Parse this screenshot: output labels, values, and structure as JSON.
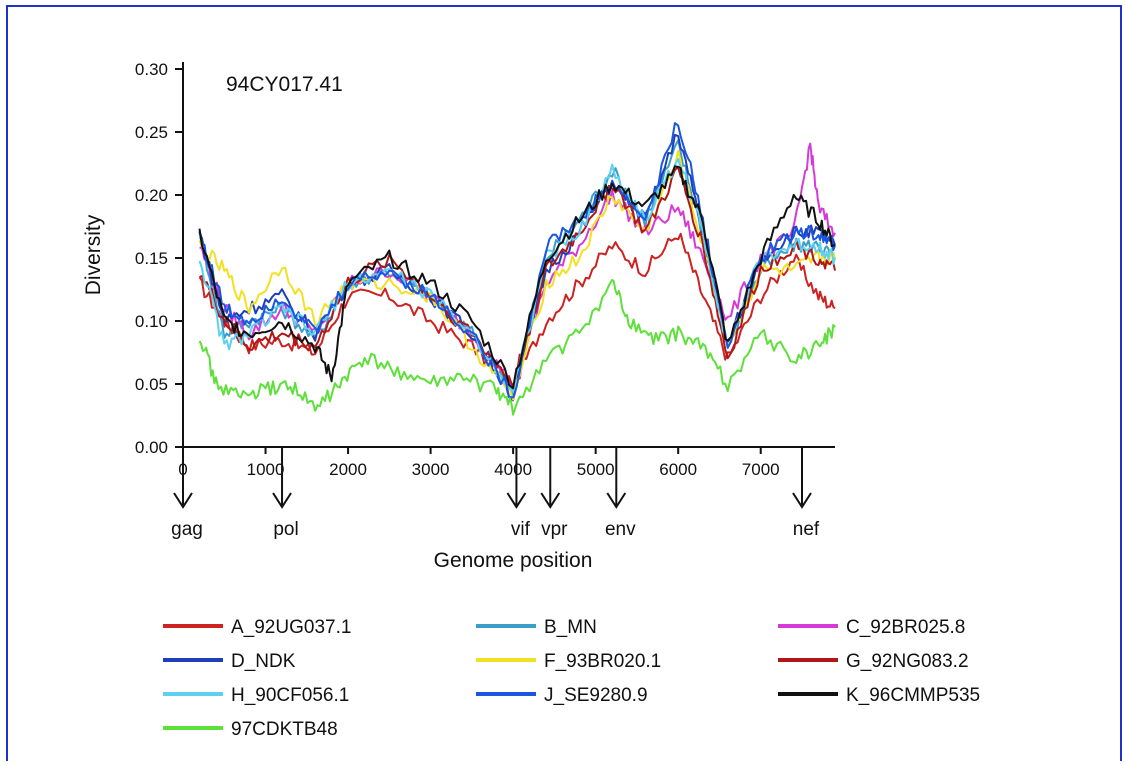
{
  "frame_color": "#1f2fd0",
  "chart_data": {
    "type": "line",
    "annotation": "94CY017.41",
    "xlabel": "Genome position",
    "ylabel": "Diversity",
    "xlim": [
      0,
      7900
    ],
    "ylim": [
      0,
      0.3
    ],
    "x_ticks": [
      0,
      1000,
      2000,
      3000,
      4000,
      5000,
      6000,
      7000
    ],
    "y_ticks": [
      "0.00",
      "0.05",
      "0.10",
      "0.15",
      "0.20",
      "0.25",
      "0.30"
    ],
    "grid": false,
    "legend_position": "bottom",
    "genes": [
      {
        "name": "gag",
        "x": 0
      },
      {
        "name": "pol",
        "x": 1200
      },
      {
        "name": "vif",
        "x": 4040
      },
      {
        "name": "vpr",
        "x": 4450
      },
      {
        "name": "env",
        "x": 5250
      },
      {
        "name": "nef",
        "x": 7500
      }
    ],
    "series": [
      {
        "name": "A_92UG037.1",
        "color": "#cc2222",
        "x": [
          200,
          500,
          800,
          1200,
          1600,
          2000,
          2500,
          3000,
          3500,
          4000,
          4400,
          4800,
          5200,
          5600,
          6000,
          6300,
          6600,
          7000,
          7400,
          7700,
          7900
        ],
        "y": [
          0.13,
          0.1,
          0.08,
          0.085,
          0.075,
          0.12,
          0.12,
          0.1,
          0.08,
          0.05,
          0.1,
          0.13,
          0.16,
          0.14,
          0.17,
          0.12,
          0.07,
          0.12,
          0.15,
          0.12,
          0.11
        ]
      },
      {
        "name": "B_MN",
        "color": "#3a9fc8",
        "x": [
          200,
          500,
          800,
          1200,
          1600,
          2000,
          2500,
          3000,
          3500,
          4000,
          4400,
          4800,
          5200,
          5600,
          6000,
          6300,
          6600,
          7000,
          7400,
          7700,
          7900
        ],
        "y": [
          0.17,
          0.09,
          0.1,
          0.11,
          0.085,
          0.13,
          0.14,
          0.12,
          0.09,
          0.045,
          0.15,
          0.18,
          0.22,
          0.18,
          0.24,
          0.17,
          0.08,
          0.14,
          0.16,
          0.16,
          0.15
        ]
      },
      {
        "name": "C_92BR025.8",
        "color": "#d63ad6",
        "x": [
          200,
          500,
          800,
          1200,
          1600,
          2000,
          2500,
          3000,
          3500,
          4000,
          4400,
          4800,
          5200,
          5600,
          6000,
          6300,
          6600,
          7000,
          7400,
          7600,
          7700,
          7900
        ],
        "y": [
          0.16,
          0.11,
          0.09,
          0.11,
          0.09,
          0.13,
          0.14,
          0.12,
          0.09,
          0.05,
          0.13,
          0.16,
          0.2,
          0.17,
          0.19,
          0.15,
          0.1,
          0.15,
          0.17,
          0.24,
          0.19,
          0.17
        ]
      },
      {
        "name": "D_NDK",
        "color": "#1e3fb8",
        "x": [
          200,
          500,
          800,
          1200,
          1600,
          2000,
          2500,
          3000,
          3500,
          4000,
          4400,
          4800,
          5200,
          5600,
          6000,
          6300,
          6600,
          7000,
          7400,
          7700,
          7900
        ],
        "y": [
          0.17,
          0.1,
          0.11,
          0.12,
          0.09,
          0.13,
          0.14,
          0.12,
          0.09,
          0.04,
          0.14,
          0.17,
          0.21,
          0.18,
          0.25,
          0.17,
          0.08,
          0.15,
          0.17,
          0.17,
          0.16
        ]
      },
      {
        "name": "F_93BR020.1",
        "color": "#f2e022",
        "x": [
          200,
          500,
          800,
          1200,
          1600,
          2000,
          2500,
          3000,
          3500,
          4000,
          4400,
          4800,
          5200,
          5600,
          6000,
          6300,
          6600,
          7000,
          7400,
          7700,
          7900
        ],
        "y": [
          0.16,
          0.14,
          0.11,
          0.145,
          0.1,
          0.13,
          0.13,
          0.12,
          0.08,
          0.04,
          0.13,
          0.15,
          0.2,
          0.17,
          0.23,
          0.16,
          0.08,
          0.14,
          0.14,
          0.15,
          0.15
        ]
      },
      {
        "name": "G_92NG083.2",
        "color": "#b01818",
        "x": [
          200,
          500,
          800,
          1200,
          1600,
          2000,
          2500,
          3000,
          3500,
          4000,
          4400,
          4800,
          5200,
          5600,
          6000,
          6300,
          6600,
          7000,
          7400,
          7700,
          7900
        ],
        "y": [
          0.14,
          0.1,
          0.08,
          0.09,
          0.08,
          0.13,
          0.15,
          0.12,
          0.09,
          0.05,
          0.14,
          0.17,
          0.21,
          0.17,
          0.22,
          0.16,
          0.07,
          0.14,
          0.16,
          0.15,
          0.14
        ]
      },
      {
        "name": "H_90CF056.1",
        "color": "#5fd0f0",
        "x": [
          200,
          500,
          800,
          1200,
          1600,
          2000,
          2500,
          3000,
          3500,
          4000,
          4400,
          4800,
          5200,
          5600,
          6000,
          6300,
          6600,
          7000,
          7400,
          7700,
          7900
        ],
        "y": [
          0.15,
          0.08,
          0.09,
          0.11,
          0.09,
          0.13,
          0.14,
          0.12,
          0.09,
          0.045,
          0.15,
          0.17,
          0.22,
          0.18,
          0.23,
          0.17,
          0.08,
          0.15,
          0.16,
          0.16,
          0.15
        ]
      },
      {
        "name": "J_SE9280.9",
        "color": "#1a56e0",
        "x": [
          200,
          500,
          800,
          1200,
          1600,
          2000,
          2500,
          3000,
          3500,
          4000,
          4400,
          4800,
          5200,
          5600,
          6000,
          6300,
          6600,
          7000,
          7400,
          7700,
          7900
        ],
        "y": [
          0.17,
          0.11,
          0.1,
          0.12,
          0.09,
          0.13,
          0.14,
          0.12,
          0.09,
          0.04,
          0.16,
          0.18,
          0.21,
          0.18,
          0.26,
          0.18,
          0.08,
          0.15,
          0.17,
          0.17,
          0.16
        ]
      },
      {
        "name": "K_96CMMP535",
        "color": "#111111",
        "x": [
          200,
          500,
          800,
          1200,
          1600,
          1800,
          2000,
          2500,
          3000,
          3500,
          4000,
          4400,
          4800,
          5200,
          5600,
          6000,
          6300,
          6600,
          7000,
          7400,
          7700,
          7900
        ],
        "y": [
          0.17,
          0.1,
          0.09,
          0.1,
          0.08,
          0.055,
          0.13,
          0.15,
          0.13,
          0.1,
          0.05,
          0.15,
          0.18,
          0.21,
          0.19,
          0.22,
          0.18,
          0.08,
          0.15,
          0.2,
          0.18,
          0.16
        ]
      },
      {
        "name": "97CDKTB48",
        "color": "#5ee03a",
        "x": [
          200,
          400,
          700,
          1000,
          1300,
          1600,
          1900,
          2200,
          2600,
          3000,
          3400,
          3800,
          4000,
          4400,
          4800,
          5200,
          5400,
          5700,
          6000,
          6300,
          6600,
          7000,
          7400,
          7700,
          7900
        ],
        "y": [
          0.09,
          0.05,
          0.04,
          0.045,
          0.05,
          0.03,
          0.05,
          0.07,
          0.06,
          0.05,
          0.055,
          0.045,
          0.03,
          0.07,
          0.09,
          0.13,
          0.1,
          0.085,
          0.09,
          0.08,
          0.05,
          0.09,
          0.07,
          0.08,
          0.095
        ]
      }
    ]
  }
}
